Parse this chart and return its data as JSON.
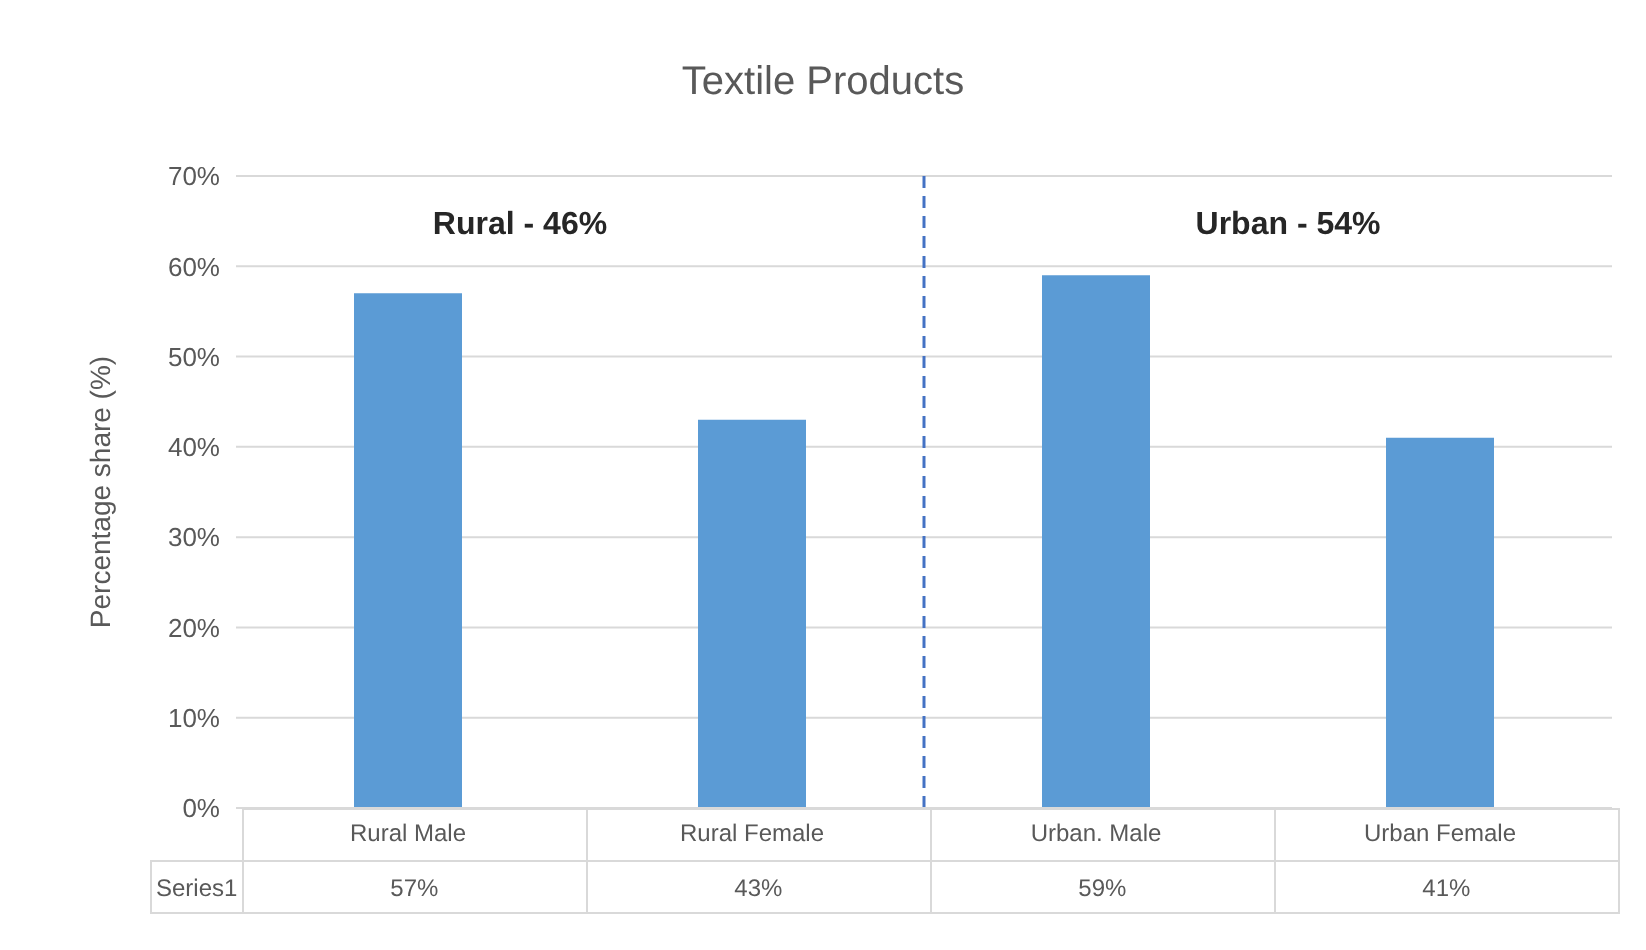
{
  "chart_data": {
    "type": "bar",
    "title": "Textile Products",
    "ylabel": "Percentage share (%)",
    "categories": [
      "Rural Male",
      "Rural Female",
      "Urban. Male",
      "Urban Female"
    ],
    "series": [
      {
        "name": "Series1",
        "color": "#5b9bd5",
        "values": [
          57,
          43,
          59,
          41
        ],
        "value_labels": [
          "57%",
          "43%",
          "59%",
          "41%"
        ]
      }
    ],
    "ylim": [
      0,
      70
    ],
    "yticks": [
      {
        "value": 0,
        "label": "0%"
      },
      {
        "value": 10,
        "label": "10%"
      },
      {
        "value": 20,
        "label": "20%"
      },
      {
        "value": 30,
        "label": "30%"
      },
      {
        "value": 40,
        "label": "40%"
      },
      {
        "value": 50,
        "label": "50%"
      },
      {
        "value": 60,
        "label": "60%"
      },
      {
        "value": 70,
        "label": "70%"
      }
    ],
    "ref_lines": [
      {
        "axis": "x",
        "value": "Urban. Male",
        "color": "#4472c4",
        "line_style": "dashed"
      }
    ],
    "grid": "y",
    "legend": false,
    "annotations": [
      "Rural - 46%",
      "Urban - 54%"
    ]
  }
}
